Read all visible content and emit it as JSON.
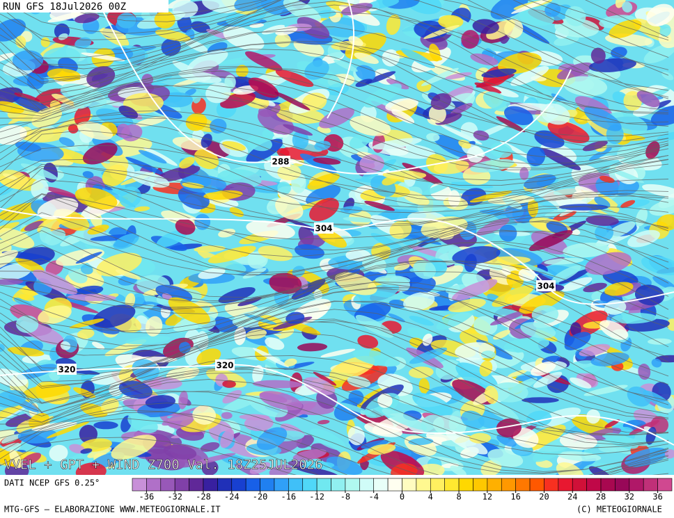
{
  "header": {
    "run": "RUN GFS 18Jul2026 00Z"
  },
  "map": {
    "title": "VVEL + GPT + WIND Z700 Val. 18Z25JUL2026",
    "contour_labels": [
      288,
      304,
      304,
      320,
      320
    ]
  },
  "footer": {
    "source": "DATI NCEP GFS 0.25°",
    "credit": "MTG-GFS — ELABORAZIONE WWW.METEOGIORNALE.IT",
    "copyright": "(C) METEOGIORNALE"
  },
  "colorbar": {
    "range": [
      -38,
      38
    ],
    "ticks": [
      -36,
      -32,
      -28,
      -24,
      -20,
      -16,
      -12,
      -8,
      -4,
      0,
      4,
      8,
      12,
      16,
      20,
      24,
      28,
      32,
      36
    ],
    "colors": [
      "#c890d8",
      "#b070c8",
      "#9858b8",
      "#8040a8",
      "#602898",
      "#3820a0",
      "#2030b8",
      "#1840d0",
      "#1860e8",
      "#2080f0",
      "#30a0f8",
      "#40c0f8",
      "#50d8f8",
      "#70e8f0",
      "#90f0f0",
      "#b0f8f0",
      "#d0fcf8",
      "#e8fff8",
      "#fffff0",
      "#fffcc0",
      "#fff890",
      "#fff060",
      "#ffe830",
      "#ffd800",
      "#ffc800",
      "#ffb000",
      "#ff9800",
      "#ff7800",
      "#ff5800",
      "#f83020",
      "#e81830",
      "#d01038",
      "#c00848",
      "#a80850",
      "#980858",
      "#b01868",
      "#c03078",
      "#d04890"
    ]
  }
}
